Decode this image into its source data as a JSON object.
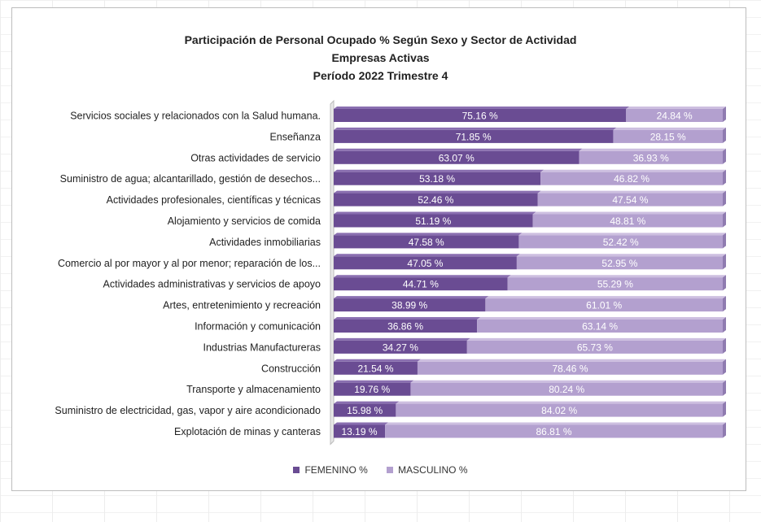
{
  "chart_data": {
    "type": "bar",
    "stacked": "percent",
    "orientation": "horizontal",
    "title": [
      "Participación de Personal Ocupado % Según Sexo y Sector de Actividad",
      "Empresas Activas",
      "Período 2022 Trimestre 4"
    ],
    "categories": [
      "Servicios sociales y relacionados con la Salud humana.",
      "Enseñanza",
      "Otras actividades de servicio",
      "Suministro de agua; alcantarillado, gestión de desechos...",
      "Actividades profesionales, científicas y técnicas",
      "Alojamiento y servicios de comida",
      "Actividades inmobiliarias",
      "Comercio al por mayor y al por menor; reparación de los...",
      "Actividades administrativas y servicios de apoyo",
      "Artes, entretenimiento y recreación",
      "Información y comunicación",
      "Industrias Manufactureras",
      "Construcción",
      "Transporte y almacenamiento",
      "Suministro de electricidad, gas, vapor y aire acondicionado",
      "Explotación de minas y canteras"
    ],
    "series": [
      {
        "name": "FEMENINO %",
        "color": "#6a4c93",
        "values": [
          75.16,
          71.85,
          63.07,
          53.18,
          52.46,
          51.19,
          47.58,
          47.05,
          44.71,
          38.99,
          36.86,
          34.27,
          21.54,
          19.76,
          15.98,
          13.19
        ],
        "labels": [
          "75.16 %",
          "71.85 %",
          "63.07 %",
          "53.18 %",
          "52.46 %",
          "51.19 %",
          "47.58 %",
          "47.05 %",
          "44.71 %",
          "38.99 %",
          "36.86 %",
          "34.27 %",
          "21.54 %",
          "19.76 %",
          "15.98 %",
          "13.19 %"
        ]
      },
      {
        "name": "MASCULINO %",
        "color": "#b3a0cf",
        "values": [
          24.84,
          28.15,
          36.93,
          46.82,
          47.54,
          48.81,
          52.42,
          52.95,
          55.29,
          61.01,
          63.14,
          65.73,
          78.46,
          80.24,
          84.02,
          86.81
        ],
        "labels": [
          "24.84 %",
          "28.15 %",
          "36.93 %",
          "46.82 %",
          "47.54 %",
          "48.81 %",
          "52.42 %",
          "52.95 %",
          "55.29 %",
          "61.01 %",
          "63.14 %",
          "65.73 %",
          "78.46 %",
          "80.24 %",
          "84.02 %",
          "86.81 %"
        ]
      }
    ],
    "xlim": [
      0,
      100
    ],
    "legend_position": "bottom",
    "grid": false
  }
}
